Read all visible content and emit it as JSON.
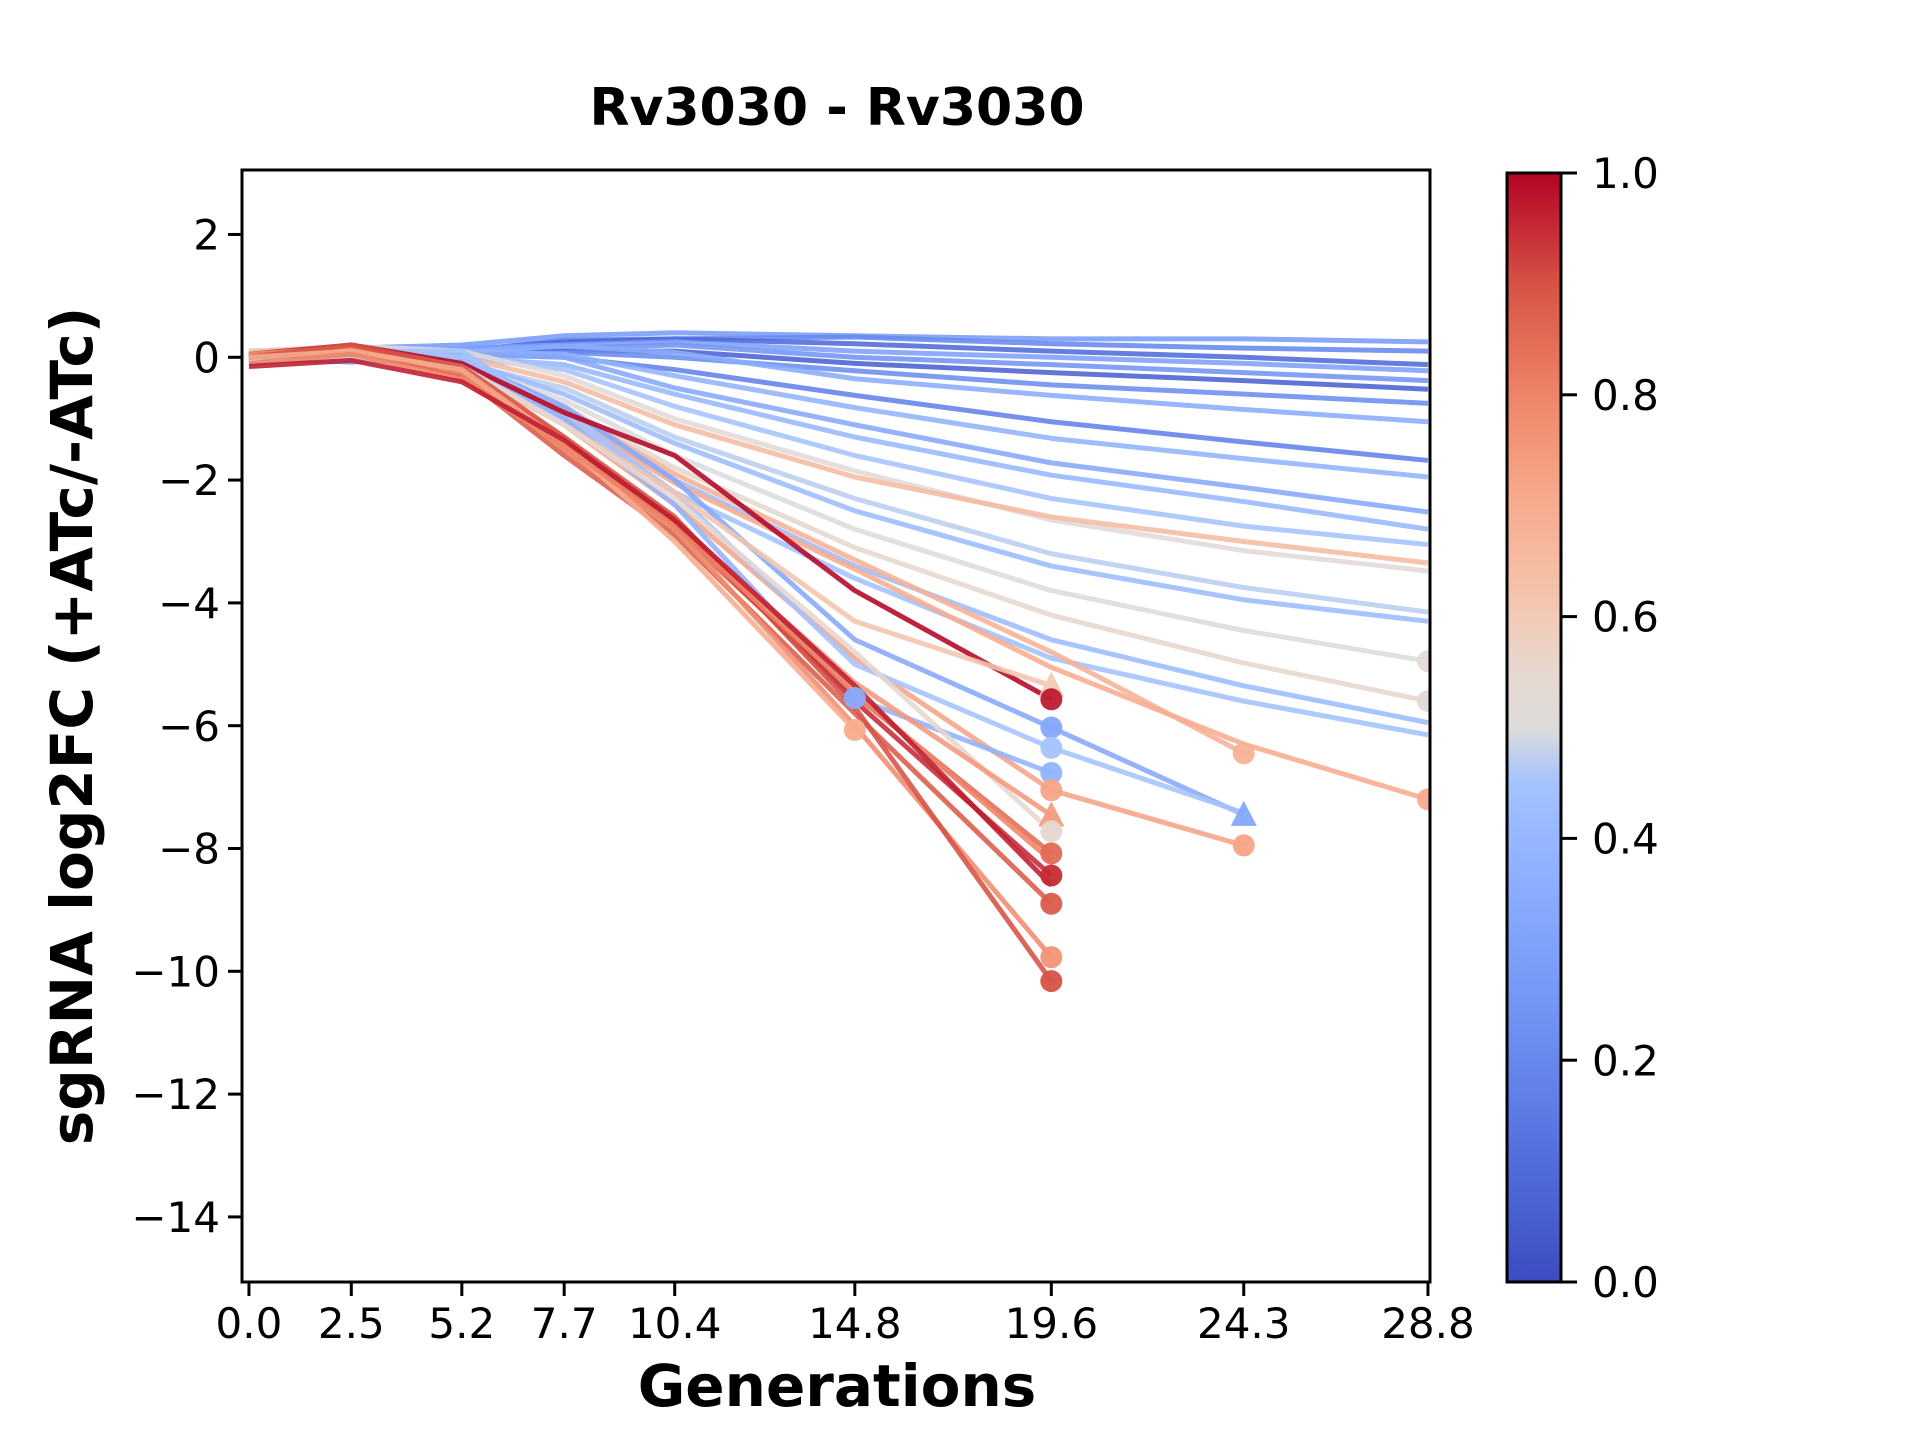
{
  "figure": {
    "title": "Rv3030 - Rv3030",
    "xlabel": "Generations",
    "ylabel": "sgRNA log2FC (+ATc/-ATc)",
    "background": "#ffffff",
    "spine_color": "#000000"
  },
  "chart_data": {
    "type": "line",
    "title": "Rv3030 - Rv3030",
    "xlabel": "Generations",
    "ylabel": "sgRNA log2FC (+ATc/-ATc)",
    "grid": false,
    "legend": "colorbar",
    "xlim": [
      -0.17,
      28.85
    ],
    "ylim": [
      -15.06,
      3.05
    ],
    "x_ticks": {
      "values": [
        0.0,
        2.5,
        5.2,
        7.7,
        10.4,
        14.8,
        19.6,
        24.3,
        28.8
      ],
      "labels": [
        "0.0",
        "2.5",
        "5.2",
        "7.7",
        "10.4",
        "14.8",
        "19.6",
        "24.3",
        "28.8"
      ]
    },
    "y_ticks": {
      "values": [
        2,
        0,
        -2,
        -4,
        -6,
        -8,
        -10,
        -12,
        -14
      ],
      "labels": [
        "2",
        "0",
        "−2",
        "−4",
        "−6",
        "−8",
        "−10",
        "−12",
        "−14"
      ]
    },
    "colorbar": {
      "min": 0.0,
      "max": 1.0,
      "tick_values": [
        0.0,
        0.2,
        0.4,
        0.6,
        0.8,
        1.0
      ],
      "tick_labels": [
        "0.0",
        "0.2",
        "0.4",
        "0.6",
        "0.8",
        "1.0"
      ],
      "colormap": "coolwarm",
      "stops": [
        [
          0.0,
          "#3b4cc0"
        ],
        [
          0.1,
          "#506bda"
        ],
        [
          0.2,
          "#6788ee"
        ],
        [
          0.3,
          "#7ea1fa"
        ],
        [
          0.4,
          "#96b7ff"
        ],
        [
          0.45,
          "#a5c3fe"
        ],
        [
          0.5,
          "#dddcdc"
        ],
        [
          0.55,
          "#e6d7cf"
        ],
        [
          0.6,
          "#f2cab5"
        ],
        [
          0.7,
          "#f7ac8e"
        ],
        [
          0.8,
          "#ee8468"
        ],
        [
          0.9,
          "#d65244"
        ],
        [
          1.0,
          "#b40426"
        ]
      ]
    },
    "generations_grid": [
      0,
      2.5,
      5.2,
      7.7,
      10.4,
      14.8,
      19.6,
      24.3,
      28.8
    ],
    "series": [
      {
        "c": 0.28,
        "y": [
          0.1,
          0.15,
          0.2,
          0.35,
          0.4,
          0.35,
          0.3,
          0.3,
          0.25
        ]
      },
      {
        "c": 0.2,
        "y": [
          0.0,
          0.1,
          0.1,
          0.28,
          0.3,
          0.33,
          0.22,
          0.15,
          0.1
        ]
      },
      {
        "c": 0.1,
        "y": [
          -0.05,
          0.05,
          0.12,
          0.25,
          0.3,
          0.22,
          0.1,
          0.0,
          -0.12
        ]
      },
      {
        "c": 0.3,
        "y": [
          0.08,
          0.0,
          0.15,
          0.2,
          0.25,
          0.1,
          0.0,
          -0.1,
          -0.22
        ]
      },
      {
        "c": 0.25,
        "y": [
          0.0,
          -0.08,
          0.05,
          0.15,
          0.2,
          0.0,
          -0.12,
          -0.25,
          -0.38
        ]
      },
      {
        "c": 0.07,
        "y": [
          -0.08,
          0.0,
          0.02,
          0.1,
          0.1,
          -0.1,
          -0.25,
          -0.38,
          -0.52
        ]
      },
      {
        "c": 0.22,
        "y": [
          0.05,
          0.1,
          0.0,
          0.08,
          0.0,
          -0.22,
          -0.45,
          -0.6,
          -0.75
        ]
      },
      {
        "c": 0.35,
        "y": [
          0.0,
          0.05,
          0.1,
          0.18,
          0.08,
          -0.35,
          -0.62,
          -0.85,
          -1.05
        ]
      },
      {
        "c": 0.18,
        "y": [
          0.0,
          -0.05,
          0.05,
          0.0,
          -0.2,
          -0.62,
          -1.05,
          -1.38,
          -1.68
        ]
      },
      {
        "c": 0.38,
        "y": [
          0.05,
          0.0,
          0.1,
          0.05,
          -0.3,
          -0.82,
          -1.32,
          -1.65,
          -1.95
        ]
      },
      {
        "c": 0.33,
        "y": [
          0.0,
          0.1,
          0.05,
          0.0,
          -0.5,
          -1.1,
          -1.72,
          -2.12,
          -2.52
        ]
      },
      {
        "c": 0.4,
        "y": [
          -0.05,
          0.0,
          0.0,
          -0.12,
          -0.6,
          -1.3,
          -1.92,
          -2.35,
          -2.8
        ]
      },
      {
        "c": 0.45,
        "y": [
          0.0,
          0.05,
          0.0,
          -0.2,
          -0.8,
          -1.6,
          -2.3,
          -2.75,
          -3.05
        ]
      },
      {
        "c": 0.52,
        "y": [
          0.1,
          0.18,
          0.1,
          -0.3,
          -1.0,
          -1.85,
          -2.65,
          -3.15,
          -3.48
        ]
      },
      {
        "c": 0.65,
        "y": [
          0.05,
          0.1,
          0.0,
          -0.4,
          -1.1,
          -1.95,
          -2.6,
          -3.0,
          -3.35
        ]
      },
      {
        "c": 0.47,
        "y": [
          0.0,
          -0.05,
          -0.1,
          -0.5,
          -1.3,
          -2.3,
          -3.2,
          -3.75,
          -4.15
        ]
      },
      {
        "c": 0.42,
        "y": [
          0.05,
          0.0,
          -0.05,
          -0.6,
          -1.4,
          -2.5,
          -3.4,
          -3.95,
          -4.3
        ]
      },
      {
        "c": 0.5,
        "y": [
          0.0,
          0.1,
          -0.1,
          -0.7,
          -1.6,
          -2.8,
          -3.8,
          -4.45,
          -4.95
        ]
      },
      {
        "c": 0.55,
        "y": [
          -0.05,
          0.0,
          -0.2,
          -0.8,
          -1.8,
          -3.1,
          -4.2,
          -4.98,
          -5.6
        ]
      },
      {
        "c": 0.42,
        "y": [
          0.0,
          0.05,
          0.0,
          -0.9,
          -2.0,
          -3.4,
          -4.6,
          -5.35,
          -5.95
        ]
      },
      {
        "c": 0.44,
        "y": [
          0.05,
          0.1,
          0.1,
          -1.0,
          -2.2,
          -3.6,
          -4.9,
          -5.6,
          -6.15
        ]
      },
      {
        "c": 0.68,
        "y": [
          0.0,
          0.1,
          -0.15,
          -0.85,
          -1.9,
          -3.3,
          -4.8,
          -6.45
        ]
      },
      {
        "c": 0.7,
        "y": [
          0.05,
          0.15,
          -0.1,
          -0.95,
          -2.05,
          -3.45,
          -5.05,
          -6.3,
          -7.2
        ]
      },
      {
        "c": 0.72,
        "y": [
          0.0,
          0.1,
          -0.2,
          -1.1,
          -2.4,
          -4.9,
          -7.05,
          -7.95
        ]
      },
      {
        "c": 0.33,
        "y": [
          0.0,
          0.05,
          -0.05,
          -0.8,
          -2.0,
          -4.6,
          -6.03,
          -7.45
        ]
      },
      {
        "c": 0.45,
        "y": [
          0.05,
          0.1,
          0.0,
          -0.9,
          -2.2,
          -5.0,
          -6.36,
          -7.42
        ]
      },
      {
        "c": 0.38,
        "y": [
          0.0,
          0.05,
          -0.1,
          -1.0,
          -2.4,
          -5.55,
          -6.77
        ]
      },
      {
        "c": 1.0,
        "y": [
          0.0,
          0.2,
          -0.1,
          -0.9,
          -1.6,
          -3.8,
          -5.57
        ]
      },
      {
        "c": 0.62,
        "y": [
          0.1,
          0.15,
          -0.2,
          -1.1,
          -2.2,
          -4.3,
          -5.35
        ]
      },
      {
        "c": 0.55,
        "y": [
          0.05,
          0.15,
          -0.15,
          -1.1,
          -2.3,
          -4.8,
          -7.72
        ]
      },
      {
        "c": 0.75,
        "y": [
          0.0,
          0.1,
          -0.25,
          -1.3,
          -2.7,
          -5.3,
          -7.46
        ]
      },
      {
        "c": 0.85,
        "y": [
          0.0,
          0.15,
          -0.3,
          -1.5,
          -2.8,
          -5.5,
          -8.08
        ]
      },
      {
        "c": 0.95,
        "y": [
          0.05,
          0.2,
          -0.2,
          -1.4,
          -2.7,
          -5.6,
          -8.44
        ]
      },
      {
        "c": 0.88,
        "y": [
          0.0,
          0.1,
          -0.3,
          -1.6,
          -2.9,
          -5.8,
          -8.9
        ]
      },
      {
        "c": 0.78,
        "y": [
          0.05,
          0.15,
          -0.25,
          -1.5,
          -2.8,
          -6.0,
          -9.77
        ]
      },
      {
        "c": 0.9,
        "y": [
          0.0,
          0.2,
          -0.15,
          -1.3,
          -2.6,
          -5.7,
          -10.16
        ]
      },
      {
        "c": 0.7,
        "y": [
          0.0,
          0.1,
          -0.2,
          -1.4,
          -3.0,
          -6.07
        ]
      },
      {
        "c": 0.8,
        "y": [
          -0.1,
          0.05,
          -0.35,
          -1.45,
          -2.75,
          -5.45,
          -8.2
        ]
      },
      {
        "c": 0.97,
        "y": [
          -0.15,
          -0.05,
          -0.4,
          -1.35,
          -2.65,
          -5.35,
          -8.6
        ]
      }
    ],
    "end_markers": [
      {
        "x": 14.8,
        "y": -5.55,
        "c": 0.35,
        "shape": "circle"
      },
      {
        "x": 14.8,
        "y": -6.07,
        "c": 0.7,
        "shape": "circle"
      },
      {
        "x": 19.6,
        "y": -5.35,
        "c": 0.6,
        "shape": "triangle"
      },
      {
        "x": 19.6,
        "y": -5.57,
        "c": 0.97,
        "shape": "circle"
      },
      {
        "x": 19.6,
        "y": -6.03,
        "c": 0.33,
        "shape": "circle"
      },
      {
        "x": 19.6,
        "y": -6.36,
        "c": 0.45,
        "shape": "circle"
      },
      {
        "x": 19.6,
        "y": -6.77,
        "c": 0.38,
        "shape": "circle"
      },
      {
        "x": 19.6,
        "y": -7.05,
        "c": 0.72,
        "shape": "circle"
      },
      {
        "x": 19.6,
        "y": -7.46,
        "c": 0.74,
        "shape": "triangle"
      },
      {
        "x": 19.6,
        "y": -7.72,
        "c": 0.55,
        "shape": "circle"
      },
      {
        "x": 19.6,
        "y": -8.08,
        "c": 0.85,
        "shape": "circle"
      },
      {
        "x": 19.6,
        "y": -8.44,
        "c": 0.95,
        "shape": "circle"
      },
      {
        "x": 19.6,
        "y": -8.9,
        "c": 0.88,
        "shape": "circle"
      },
      {
        "x": 19.6,
        "y": -9.77,
        "c": 0.76,
        "shape": "circle"
      },
      {
        "x": 19.6,
        "y": -10.16,
        "c": 0.9,
        "shape": "circle"
      },
      {
        "x": 24.3,
        "y": -6.45,
        "c": 0.68,
        "shape": "circle"
      },
      {
        "x": 24.3,
        "y": -7.45,
        "c": 0.33,
        "shape": "triangle"
      },
      {
        "x": 24.3,
        "y": -7.95,
        "c": 0.72,
        "shape": "circle"
      },
      {
        "x": 28.8,
        "y": -4.95,
        "c": 0.52,
        "shape": "circle"
      },
      {
        "x": 28.8,
        "y": -5.6,
        "c": 0.53,
        "shape": "circle"
      },
      {
        "x": 28.8,
        "y": -7.2,
        "c": 0.7,
        "shape": "circle"
      }
    ]
  }
}
